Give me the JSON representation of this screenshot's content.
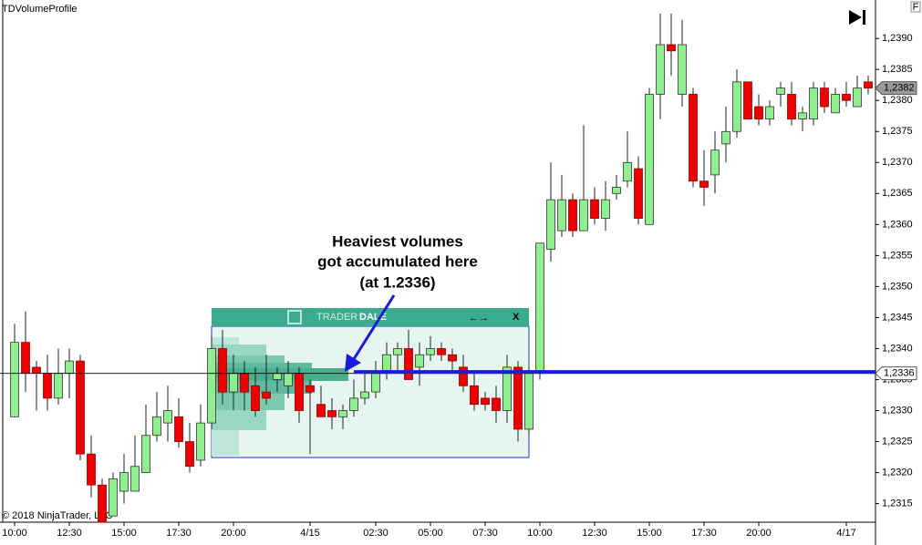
{
  "chart_data": {
    "type": "candlestick",
    "indicator": "TDVolumeProfile",
    "copyright": "© 2018 NinjaTrader, LLC",
    "annotation": [
      "Heaviest volumes",
      "got accumulated here",
      "(at 1.2336)"
    ],
    "profile_brand": [
      "TRADER",
      "DALE"
    ],
    "profile_controls": [
      "←→",
      "X"
    ],
    "panel_label": "F",
    "categories": [
      "10:00",
      null,
      null,
      null,
      null,
      "12:30",
      null,
      null,
      null,
      null,
      "15:00",
      null,
      null,
      null,
      null,
      "17:30",
      null,
      null,
      null,
      null,
      "20:00",
      null,
      null,
      null,
      null,
      null,
      null,
      "4/15",
      null,
      null,
      null,
      null,
      null,
      "02:30",
      null,
      null,
      null,
      null,
      "05:00",
      null,
      null,
      null,
      null,
      "07:30",
      null,
      null,
      null,
      null,
      "10:00",
      null,
      null,
      null,
      null,
      "12:30",
      null,
      null,
      null,
      null,
      "15:00",
      null,
      null,
      null,
      null,
      "17:30",
      null,
      null,
      null,
      null,
      "20:00",
      null,
      null,
      null,
      null,
      null,
      null,
      null,
      "4/17",
      null,
      null
    ],
    "open": [
      1.2329,
      1.2341,
      1.2337,
      1.2336,
      1.2332,
      1.2336,
      1.2338,
      1.2323,
      1.2318,
      1.2313,
      1.2317,
      1.2317,
      1.232,
      1.2326,
      1.2328,
      1.2329,
      1.2325,
      1.2322,
      1.2328,
      1.234,
      1.2333,
      1.2336,
      1.2334,
      1.2333,
      1.2335,
      1.2334,
      1.2336,
      1.2334,
      1.2331,
      1.233,
      1.2329,
      1.233,
      1.2332,
      1.2333,
      1.2336,
      1.2339,
      1.234,
      1.2337,
      1.2339,
      1.234,
      1.2339,
      1.2337,
      1.2334,
      1.2332,
      1.2332,
      1.233,
      1.2337,
      1.2327,
      1.2336,
      1.2356,
      1.2359,
      1.2364,
      1.2359,
      1.2364,
      1.2361,
      1.2365,
      1.2367,
      1.2369,
      1.236,
      1.2381,
      1.2389,
      1.2381,
      1.2381,
      1.2367,
      1.2368,
      1.2373,
      1.2375,
      1.2383,
      1.2379,
      1.2377,
      1.2381,
      1.2381,
      1.2377,
      1.2377,
      1.2382,
      1.2378,
      1.2381,
      1.2379,
      1.2383
    ],
    "high": [
      1.2344,
      1.2346,
      1.2338,
      1.2339,
      1.234,
      1.234,
      1.2339,
      1.2326,
      1.2319,
      1.232,
      1.2323,
      1.2326,
      1.2331,
      1.2333,
      1.2334,
      1.2332,
      1.2328,
      1.2331,
      1.2342,
      1.2343,
      1.2339,
      1.2338,
      1.2337,
      1.2339,
      1.2337,
      1.2338,
      1.2337,
      1.2335,
      1.2334,
      1.2332,
      1.2331,
      1.2335,
      1.2336,
      1.2338,
      1.2341,
      1.2341,
      1.2343,
      1.2341,
      1.2342,
      1.2341,
      1.234,
      1.2339,
      1.2336,
      1.2333,
      1.2334,
      1.2339,
      1.2338,
      1.2337,
      1.2357,
      1.237,
      1.2368,
      1.2365,
      1.2376,
      1.2366,
      1.2367,
      1.2368,
      1.2375,
      1.2371,
      1.2382,
      1.2394,
      1.2394,
      1.2393,
      1.2382,
      1.2372,
      1.2375,
      1.2379,
      1.2385,
      1.2383,
      1.2381,
      1.238,
      1.2383,
      1.2383,
      1.2379,
      1.2383,
      1.2383,
      1.2382,
      1.2383,
      1.2384,
      1.2384
    ],
    "low": [
      1.2329,
      1.2333,
      1.233,
      1.233,
      1.2331,
      1.2332,
      1.2322,
      1.2316,
      1.2312,
      1.2313,
      1.2315,
      1.2317,
      1.232,
      1.2325,
      1.2325,
      1.2324,
      1.232,
      1.2321,
      1.2327,
      1.2331,
      1.233,
      1.233,
      1.2329,
      1.2331,
      1.2333,
      1.2332,
      1.2328,
      1.2323,
      1.2329,
      1.2327,
      1.2327,
      1.2329,
      1.2331,
      1.2332,
      1.2335,
      1.2336,
      1.2335,
      1.2334,
      1.2338,
      1.2338,
      1.2336,
      1.2333,
      1.233,
      1.233,
      1.2328,
      1.2328,
      1.2325,
      1.2326,
      1.2335,
      1.2354,
      1.2358,
      1.2358,
      1.2359,
      1.236,
      1.2359,
      1.2364,
      1.2366,
      1.236,
      1.236,
      1.2377,
      1.2384,
      1.2379,
      1.2366,
      1.2363,
      1.2365,
      1.237,
      1.2374,
      1.2377,
      1.2376,
      1.2376,
      1.2379,
      1.2376,
      1.2375,
      1.2376,
      1.2378,
      1.2378,
      1.2379,
      1.2379,
      1.2381
    ],
    "close": [
      1.2341,
      1.2336,
      1.2336,
      1.2332,
      1.2336,
      1.2338,
      1.2323,
      1.2318,
      1.2312,
      1.2319,
      1.232,
      1.2321,
      1.2326,
      1.2329,
      1.233,
      1.2325,
      1.2321,
      1.2328,
      1.234,
      1.2333,
      1.2336,
      1.2333,
      1.233,
      1.2332,
      1.2336,
      1.2336,
      1.233,
      1.2333,
      1.2329,
      1.2329,
      1.233,
      1.2332,
      1.2333,
      1.2336,
      1.2339,
      1.234,
      1.2335,
      1.2339,
      1.234,
      1.2339,
      1.2338,
      1.2334,
      1.2331,
      1.2331,
      1.233,
      1.2337,
      1.2327,
      1.2336,
      1.2357,
      1.2364,
      1.2364,
      1.2359,
      1.2364,
      1.2361,
      1.2364,
      1.2366,
      1.237,
      1.2361,
      1.2381,
      1.2389,
      1.2388,
      1.2389,
      1.2367,
      1.2366,
      1.2372,
      1.2375,
      1.2383,
      1.2377,
      1.2377,
      1.2379,
      1.2382,
      1.2377,
      1.2378,
      1.2382,
      1.2379,
      1.2381,
      1.238,
      1.2382,
      1.2382
    ],
    "up_color": "#90ee90",
    "down_color": "#ee0000",
    "ylim": [
      1.2312,
      1.23962
    ],
    "yticks": [
      {
        "value": 1.2315,
        "label": "1,2315"
      },
      {
        "value": 1.232,
        "label": "1,2320"
      },
      {
        "value": 1.2325,
        "label": "1,2325"
      },
      {
        "value": 1.233,
        "label": "1,2330"
      },
      {
        "value": 1.2335,
        "label": "1,2335"
      },
      {
        "value": 1.234,
        "label": "1,2340"
      },
      {
        "value": 1.2345,
        "label": "1,2345"
      },
      {
        "value": 1.235,
        "label": "1,2350"
      },
      {
        "value": 1.2355,
        "label": "1,2355"
      },
      {
        "value": 1.236,
        "label": "1,2360"
      },
      {
        "value": 1.2365,
        "label": "1,2365"
      },
      {
        "value": 1.237,
        "label": "1,2370"
      },
      {
        "value": 1.2375,
        "label": "1,2375"
      },
      {
        "value": 1.238,
        "label": "1,2380"
      },
      {
        "value": 1.2385,
        "label": "1,2385"
      },
      {
        "value": 1.239,
        "label": "1,2390"
      }
    ],
    "price_markers": [
      {
        "value": 1.2382,
        "label": "1,2382"
      },
      {
        "value": 1.2336,
        "label": "1,2336"
      }
    ]
  }
}
